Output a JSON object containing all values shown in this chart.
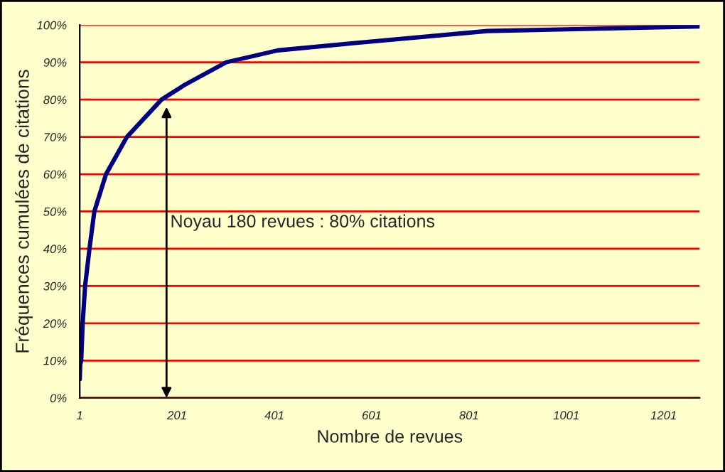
{
  "chart_data": {
    "type": "line",
    "xlabel": "Nombre de revues",
    "ylabel": "Fréquences cumulées de citations",
    "x": [
      1,
      2,
      4,
      7,
      12,
      21,
      31,
      55,
      98,
      169,
      216,
      302,
      408,
      552,
      839,
      1275
    ],
    "series": [
      {
        "color": "#000080",
        "values": [
          5,
          9,
          10,
          20,
          30,
          40,
          50,
          60,
          70,
          80,
          83.9,
          90,
          93.2,
          95,
          98.4,
          99.6
        ]
      }
    ],
    "xlim": [
      1,
      1275
    ],
    "xticks": [
      1,
      201,
      401,
      601,
      801,
      1001,
      1201
    ],
    "ylim": [
      0,
      100
    ],
    "yticks": [
      {
        "value": 0,
        "label": "0%"
      },
      {
        "value": 10,
        "label": "10%"
      },
      {
        "value": 20,
        "label": "20%"
      },
      {
        "value": 30,
        "label": "30%"
      },
      {
        "value": 40,
        "label": "40%"
      },
      {
        "value": 50,
        "label": "50%"
      },
      {
        "value": 60,
        "label": "60%"
      },
      {
        "value": 70,
        "label": "70%"
      },
      {
        "value": 80,
        "label": "80%"
      },
      {
        "value": 90,
        "label": "90%"
      },
      {
        "value": 100,
        "label": "100%"
      }
    ],
    "grid": "y",
    "annotations": [
      "Noyau 180 revues : 80% citations"
    ]
  }
}
